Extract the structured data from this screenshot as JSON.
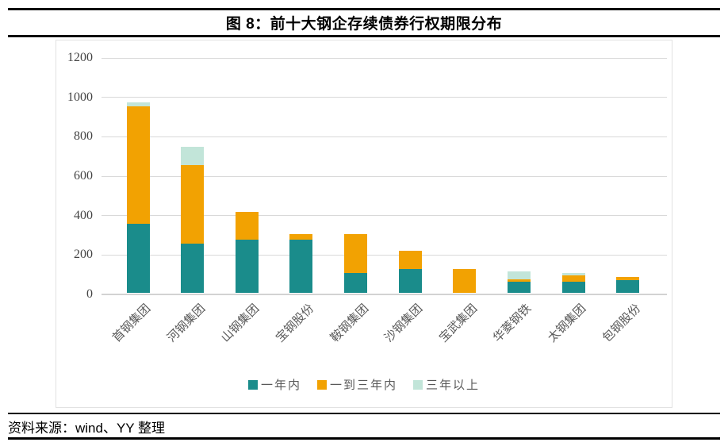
{
  "header": {
    "title": "图 8：前十大钢企存续债券行权期限分布"
  },
  "footer": {
    "source": "资料来源：wind、YY 整理"
  },
  "colors": {
    "within_one_year": "#1a8c8b",
    "one_to_three_years": "#f2a202",
    "over_three_years": "#c2e5d9",
    "gridline": "#d9d9d9",
    "axis_text": "#595959",
    "rule": "#000000"
  },
  "chart_data": {
    "type": "bar",
    "stacked": true,
    "title": "图 8：前十大钢企存续债券行权期限分布",
    "categories": [
      "首钢集团",
      "河钢集团",
      "山钢集团",
      "宝钢股份",
      "鞍钢集团",
      "沙钢集团",
      "宝武集团",
      "华菱钢铁",
      "太钢集团",
      "包钢股份"
    ],
    "series": [
      {
        "name": "一年内",
        "color": "#1a8c8b",
        "values": [
          350,
          250,
          270,
          270,
          100,
          120,
          0,
          55,
          55,
          65
        ]
      },
      {
        "name": "一到三年内",
        "color": "#f2a202",
        "values": [
          595,
          400,
          140,
          30,
          200,
          95,
          120,
          15,
          35,
          15
        ]
      },
      {
        "name": "三年以上",
        "color": "#c2e5d9",
        "values": [
          20,
          90,
          0,
          0,
          0,
          0,
          0,
          40,
          10,
          0
        ]
      }
    ],
    "totals": [
      965,
      740,
      410,
      300,
      300,
      215,
      120,
      110,
      100,
      80
    ],
    "xlabel": "",
    "ylabel": "",
    "ylim": [
      0,
      1200
    ],
    "yticks": [
      0,
      200,
      400,
      600,
      800,
      1000,
      1200
    ],
    "grid": true,
    "legend_position": "bottom",
    "x_tick_rotation": 45
  }
}
